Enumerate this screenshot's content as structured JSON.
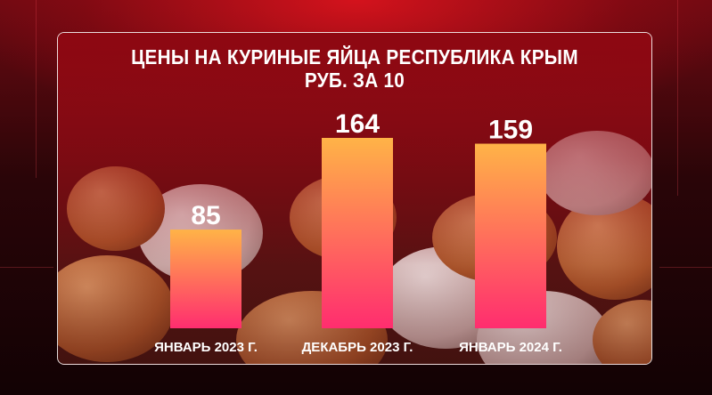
{
  "colors": {
    "bar_top": "#ffb347",
    "bar_bottom": "#ff2d6f",
    "text": "#ffffff"
  },
  "chart_data": {
    "type": "bar",
    "title": "ЦЕНЫ НА КУРИНЫЕ ЯЙЦА РЕСПУБЛИКА КРЫМ",
    "subtitle": "РУБ. ЗА 10",
    "categories": [
      "ЯНВАРЬ 2023 Г.",
      "ДЕКАБРЬ 2023 Г.",
      "ЯНВАРЬ 2024 Г."
    ],
    "values": [
      85,
      164,
      159
    ],
    "data_labels": [
      "85",
      "164",
      "159"
    ],
    "ylim": [
      0,
      164
    ],
    "grid": false,
    "legend": "none",
    "xlabel": "",
    "ylabel": ""
  }
}
